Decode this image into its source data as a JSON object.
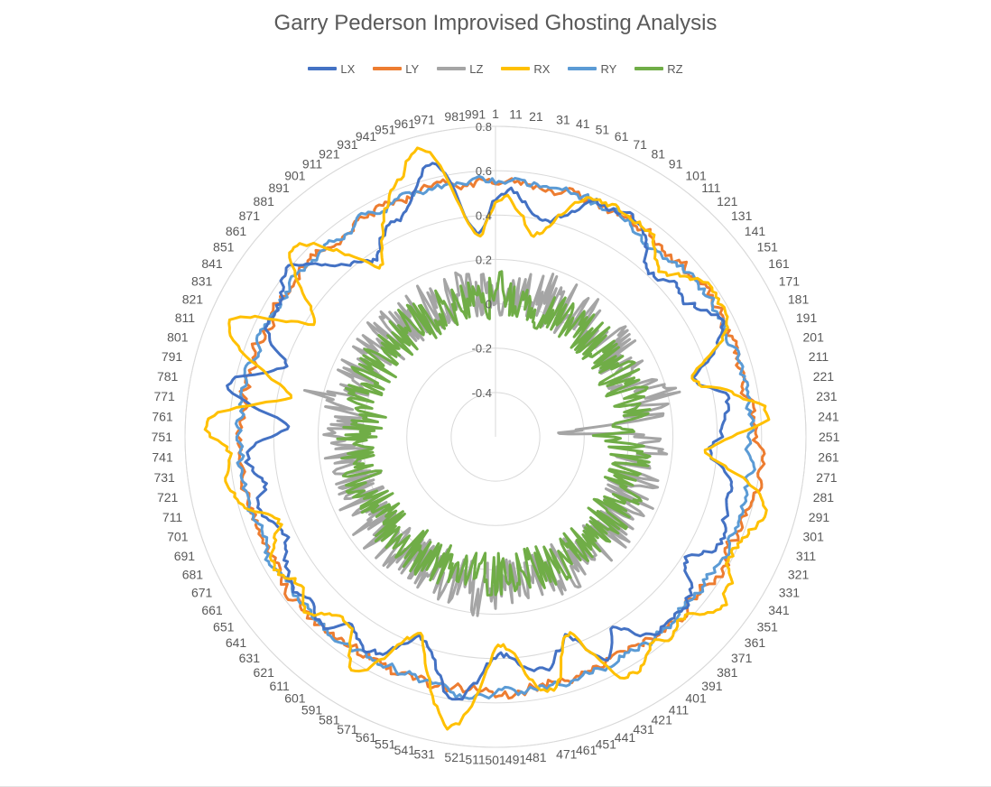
{
  "chart_data": {
    "type": "radar",
    "title": "Garry Pederson Improvised Ghosting Analysis",
    "categories_note": "",
    "category_start": 1,
    "category_end": 1000,
    "category_label_step": 10,
    "radial_ticks": [
      -0.4,
      -0.2,
      0,
      0.2,
      0.4,
      0.6,
      0.8
    ],
    "rlim": [
      -0.6,
      0.8
    ],
    "grid": true,
    "legend_position": "top",
    "series": [
      {
        "name": "LX",
        "color": "#4472C4",
        "base": 0.56,
        "peaks": [
          [
            35,
            -0.16,
            14
          ],
          [
            120,
            -0.14,
            10
          ],
          [
            150,
            -0.1,
            12
          ],
          [
            205,
            -0.22,
            12
          ],
          [
            235,
            -0.1,
            8
          ],
          [
            260,
            -0.2,
            10
          ],
          [
            295,
            -0.08,
            14
          ],
          [
            340,
            -0.14,
            10
          ],
          [
            410,
            -0.14,
            8
          ],
          [
            445,
            -0.2,
            10
          ],
          [
            465,
            -0.06,
            8
          ],
          [
            495,
            -0.18,
            14
          ],
          [
            525,
            0.08,
            8
          ],
          [
            555,
            -0.2,
            14
          ],
          [
            600,
            -0.08,
            10
          ],
          [
            640,
            -0.04,
            8
          ],
          [
            680,
            -0.12,
            12
          ],
          [
            720,
            -0.1,
            10
          ],
          [
            760,
            -0.26,
            10
          ],
          [
            780,
            0.14,
            12
          ],
          [
            800,
            -0.2,
            10
          ],
          [
            860,
            0.06,
            8
          ],
          [
            880,
            -0.06,
            10
          ],
          [
            905,
            -0.2,
            12
          ],
          [
            935,
            -0.08,
            10
          ],
          [
            965,
            0.12,
            10
          ],
          [
            985,
            -0.24,
            10
          ]
        ],
        "noise": 0.02,
        "seed": 11
      },
      {
        "name": "LY",
        "color": "#ED7D31",
        "base": 0.55,
        "peaks": [
          [
            270,
            0.04,
            20
          ],
          [
            295,
            0.03,
            12
          ],
          [
            335,
            0.04,
            10
          ],
          [
            650,
            0.02,
            16
          ]
        ],
        "noise": 0.025,
        "seed": 23
      },
      {
        "name": "LZ",
        "color": "#A5A5A5",
        "base": 0.06,
        "peaks": [
          [
            240,
            -0.42,
            4
          ],
          [
            255,
            0.12,
            4
          ],
          [
            210,
            0.1,
            6
          ],
          [
            790,
            0.12,
            6
          ],
          [
            520,
            0.1,
            6
          ]
        ],
        "noise": 0.12,
        "seed": 37
      },
      {
        "name": "RX",
        "color": "#FFC000",
        "base": 0.58,
        "peaks": [
          [
            30,
            -0.24,
            14
          ],
          [
            125,
            -0.12,
            12
          ],
          [
            205,
            -0.24,
            12
          ],
          [
            240,
            0.08,
            8
          ],
          [
            260,
            -0.24,
            10
          ],
          [
            295,
            0.08,
            10
          ],
          [
            350,
            0.1,
            10
          ],
          [
            420,
            0.06,
            8
          ],
          [
            445,
            -0.24,
            10
          ],
          [
            460,
            0.04,
            8
          ],
          [
            495,
            -0.24,
            12
          ],
          [
            525,
            0.16,
            10
          ],
          [
            560,
            -0.22,
            12
          ],
          [
            585,
            0.08,
            8
          ],
          [
            610,
            -0.12,
            10
          ],
          [
            650,
            -0.06,
            10
          ],
          [
            690,
            -0.12,
            10
          ],
          [
            720,
            0.04,
            8
          ],
          [
            760,
            0.16,
            10
          ],
          [
            780,
            -0.26,
            10
          ],
          [
            815,
            0.12,
            10
          ],
          [
            840,
            -0.22,
            10
          ],
          [
            870,
            0.06,
            8
          ],
          [
            905,
            -0.24,
            12
          ],
          [
            960,
            0.16,
            12
          ],
          [
            985,
            -0.28,
            10
          ]
        ],
        "noise": 0.02,
        "seed": 53
      },
      {
        "name": "RY",
        "color": "#5B9BD5",
        "base": 0.55,
        "peaks": [
          [
            110,
            -0.06,
            10
          ],
          [
            300,
            0.02,
            10
          ],
          [
            520,
            0.03,
            10
          ]
        ],
        "noise": 0.02,
        "seed": 71
      },
      {
        "name": "RZ",
        "color": "#70AD47",
        "base": 0.02,
        "peaks": [
          [
            5,
            0.18,
            4
          ],
          [
            250,
            -0.1,
            8
          ],
          [
            770,
            -0.06,
            8
          ]
        ],
        "noise": 0.1,
        "seed": 97
      }
    ]
  }
}
